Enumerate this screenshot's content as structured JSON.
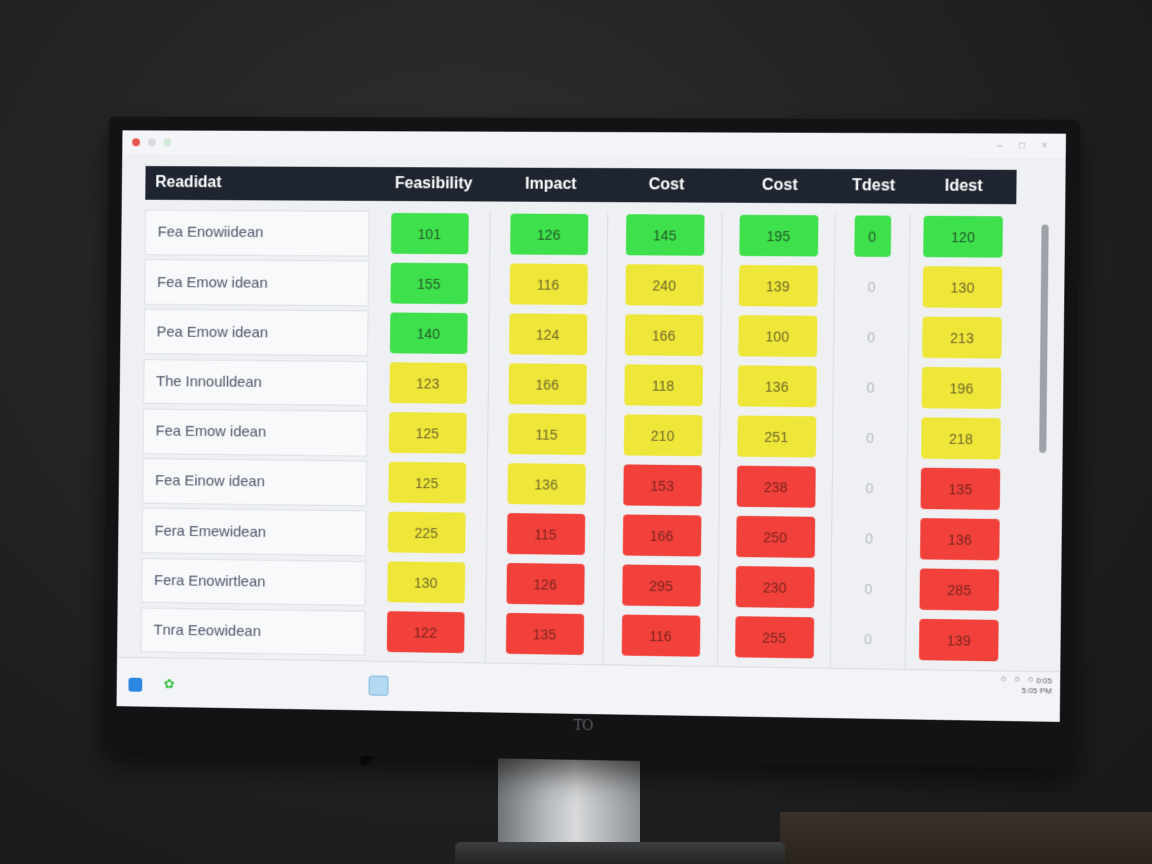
{
  "window": {
    "controls": [
      "–",
      "□",
      "×"
    ]
  },
  "table": {
    "headers": [
      "Readidat",
      "Feasibility",
      "Impact",
      "Cost",
      "Cost",
      "Tdest",
      "Idest"
    ],
    "rows": [
      {
        "name": "Fea Enowiidean",
        "scores": [
          {
            "v": "101",
            "c": "green"
          },
          {
            "v": "126",
            "c": "green"
          },
          {
            "v": "145",
            "c": "green"
          },
          {
            "v": "195",
            "c": "green"
          },
          {
            "v": "0",
            "c": "green"
          },
          {
            "v": "120",
            "c": "green"
          }
        ]
      },
      {
        "name": "Fea Emow idean",
        "scores": [
          {
            "v": "155",
            "c": "green"
          },
          {
            "v": "116",
            "c": "yellow"
          },
          {
            "v": "240",
            "c": "yellow"
          },
          {
            "v": "139",
            "c": "yellow"
          },
          {
            "v": "0",
            "c": "empty"
          },
          {
            "v": "130",
            "c": "yellow"
          }
        ]
      },
      {
        "name": "Pea Emow idean",
        "scores": [
          {
            "v": "140",
            "c": "green"
          },
          {
            "v": "124",
            "c": "yellow"
          },
          {
            "v": "166",
            "c": "yellow"
          },
          {
            "v": "100",
            "c": "yellow"
          },
          {
            "v": "0",
            "c": "empty"
          },
          {
            "v": "213",
            "c": "yellow"
          }
        ]
      },
      {
        "name": "The Innoulldean",
        "scores": [
          {
            "v": "123",
            "c": "yellow"
          },
          {
            "v": "166",
            "c": "yellow"
          },
          {
            "v": "118",
            "c": "yellow"
          },
          {
            "v": "136",
            "c": "yellow"
          },
          {
            "v": "0",
            "c": "empty"
          },
          {
            "v": "196",
            "c": "yellow"
          }
        ]
      },
      {
        "name": "Fea Emow idean",
        "scores": [
          {
            "v": "125",
            "c": "yellow"
          },
          {
            "v": "115",
            "c": "yellow"
          },
          {
            "v": "210",
            "c": "yellow"
          },
          {
            "v": "251",
            "c": "yellow"
          },
          {
            "v": "0",
            "c": "empty"
          },
          {
            "v": "218",
            "c": "yellow"
          }
        ]
      },
      {
        "name": "Fea Einow idean",
        "scores": [
          {
            "v": "125",
            "c": "yellow"
          },
          {
            "v": "136",
            "c": "yellow"
          },
          {
            "v": "153",
            "c": "red"
          },
          {
            "v": "238",
            "c": "red"
          },
          {
            "v": "0",
            "c": "empty"
          },
          {
            "v": "135",
            "c": "red"
          }
        ]
      },
      {
        "name": "Fera Emewidean",
        "scores": [
          {
            "v": "225",
            "c": "yellow"
          },
          {
            "v": "115",
            "c": "red"
          },
          {
            "v": "166",
            "c": "red"
          },
          {
            "v": "250",
            "c": "red"
          },
          {
            "v": "0",
            "c": "empty"
          },
          {
            "v": "136",
            "c": "red"
          }
        ]
      },
      {
        "name": "Fera Enowirtlean",
        "scores": [
          {
            "v": "130",
            "c": "yellow"
          },
          {
            "v": "126",
            "c": "red"
          },
          {
            "v": "295",
            "c": "red"
          },
          {
            "v": "230",
            "c": "red"
          },
          {
            "v": "0",
            "c": "empty"
          },
          {
            "v": "285",
            "c": "red"
          }
        ]
      },
      {
        "name": "Tnra Eeowidean",
        "scores": [
          {
            "v": "122",
            "c": "red"
          },
          {
            "v": "135",
            "c": "red"
          },
          {
            "v": "116",
            "c": "red"
          },
          {
            "v": "255",
            "c": "red"
          },
          {
            "v": "0",
            "c": "empty"
          },
          {
            "v": "139",
            "c": "red"
          }
        ]
      }
    ]
  },
  "status": {
    "clock_line1": "0:05",
    "clock_line2": "5:05 PM"
  },
  "colors": {
    "green": "#3ee04b",
    "yellow": "#efe63a",
    "red": "#f2413a",
    "header_bg": "#1e2530"
  },
  "icons": [
    "file-icon",
    "leaf-icon",
    "app-icon",
    "network-icon",
    "volume-icon",
    "battery-icon"
  ]
}
